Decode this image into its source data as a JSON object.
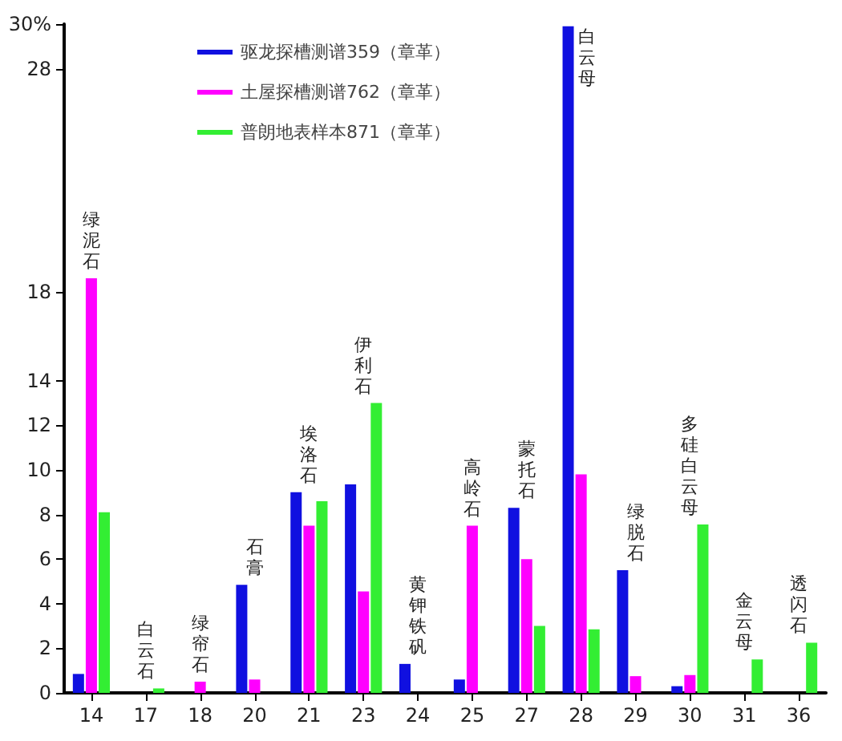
{
  "chart_data": {
    "type": "bar",
    "categories": [
      "14",
      "17",
      "18",
      "20",
      "21",
      "23",
      "24",
      "25",
      "27",
      "28",
      "29",
      "30",
      "31",
      "36"
    ],
    "series": [
      {
        "name": "驱龙探槽测谱359（章革）",
        "color": "#1010e0",
        "values": [
          0.85,
          null,
          null,
          4.85,
          9.0,
          9.35,
          1.3,
          0.6,
          8.3,
          29.9,
          5.5,
          0.3,
          null,
          null
        ]
      },
      {
        "name": "土屋探槽测谱762（章革）",
        "color": "#ff00ff",
        "values": [
          18.6,
          null,
          0.5,
          0.6,
          7.5,
          4.55,
          null,
          7.5,
          6.0,
          9.8,
          0.75,
          0.8,
          null,
          null
        ]
      },
      {
        "name": "普朗地表样本871（章革）",
        "color": "#33ee33",
        "values": [
          8.1,
          0.2,
          null,
          null,
          8.6,
          13.0,
          null,
          null,
          3.0,
          2.85,
          null,
          7.55,
          1.5,
          2.25
        ]
      }
    ],
    "ylim": [
      0,
      30
    ],
    "yticks": [
      0,
      2,
      4,
      6,
      8,
      10,
      12,
      14,
      18,
      28,
      {
        "value": 30,
        "label": "30%"
      }
    ],
    "annotations": [
      {
        "text": "绿泥石",
        "x": "14",
        "y": 18.6
      },
      {
        "text": "白云石",
        "x": "17",
        "y": 0.2
      },
      {
        "text": "绿帘石",
        "x": "18",
        "y": 0.5
      },
      {
        "text": "石膏",
        "x": "20",
        "y": 4.85
      },
      {
        "text": "埃洛石",
        "x": "21",
        "y": 9.0
      },
      {
        "text": "伊利石",
        "x": "23",
        "y": 13.0
      },
      {
        "text": "黄钾铁矾",
        "x": "24",
        "y": 1.3
      },
      {
        "text": "高岭石",
        "x": "25",
        "y": 7.5
      },
      {
        "text": "蒙托石",
        "x": "27",
        "y": 8.3
      },
      {
        "text": "白云母",
        "x": "28",
        "y": 29.9
      },
      {
        "text": "绿脱石",
        "x": "29",
        "y": 5.5
      },
      {
        "text": "多硅白云母",
        "x": "30",
        "y": 7.55
      },
      {
        "text": "金云母",
        "x": "31",
        "y": 1.5
      },
      {
        "text": "透闪石",
        "x": "36",
        "y": 2.25
      }
    ],
    "grid": false,
    "legend": "top left"
  }
}
